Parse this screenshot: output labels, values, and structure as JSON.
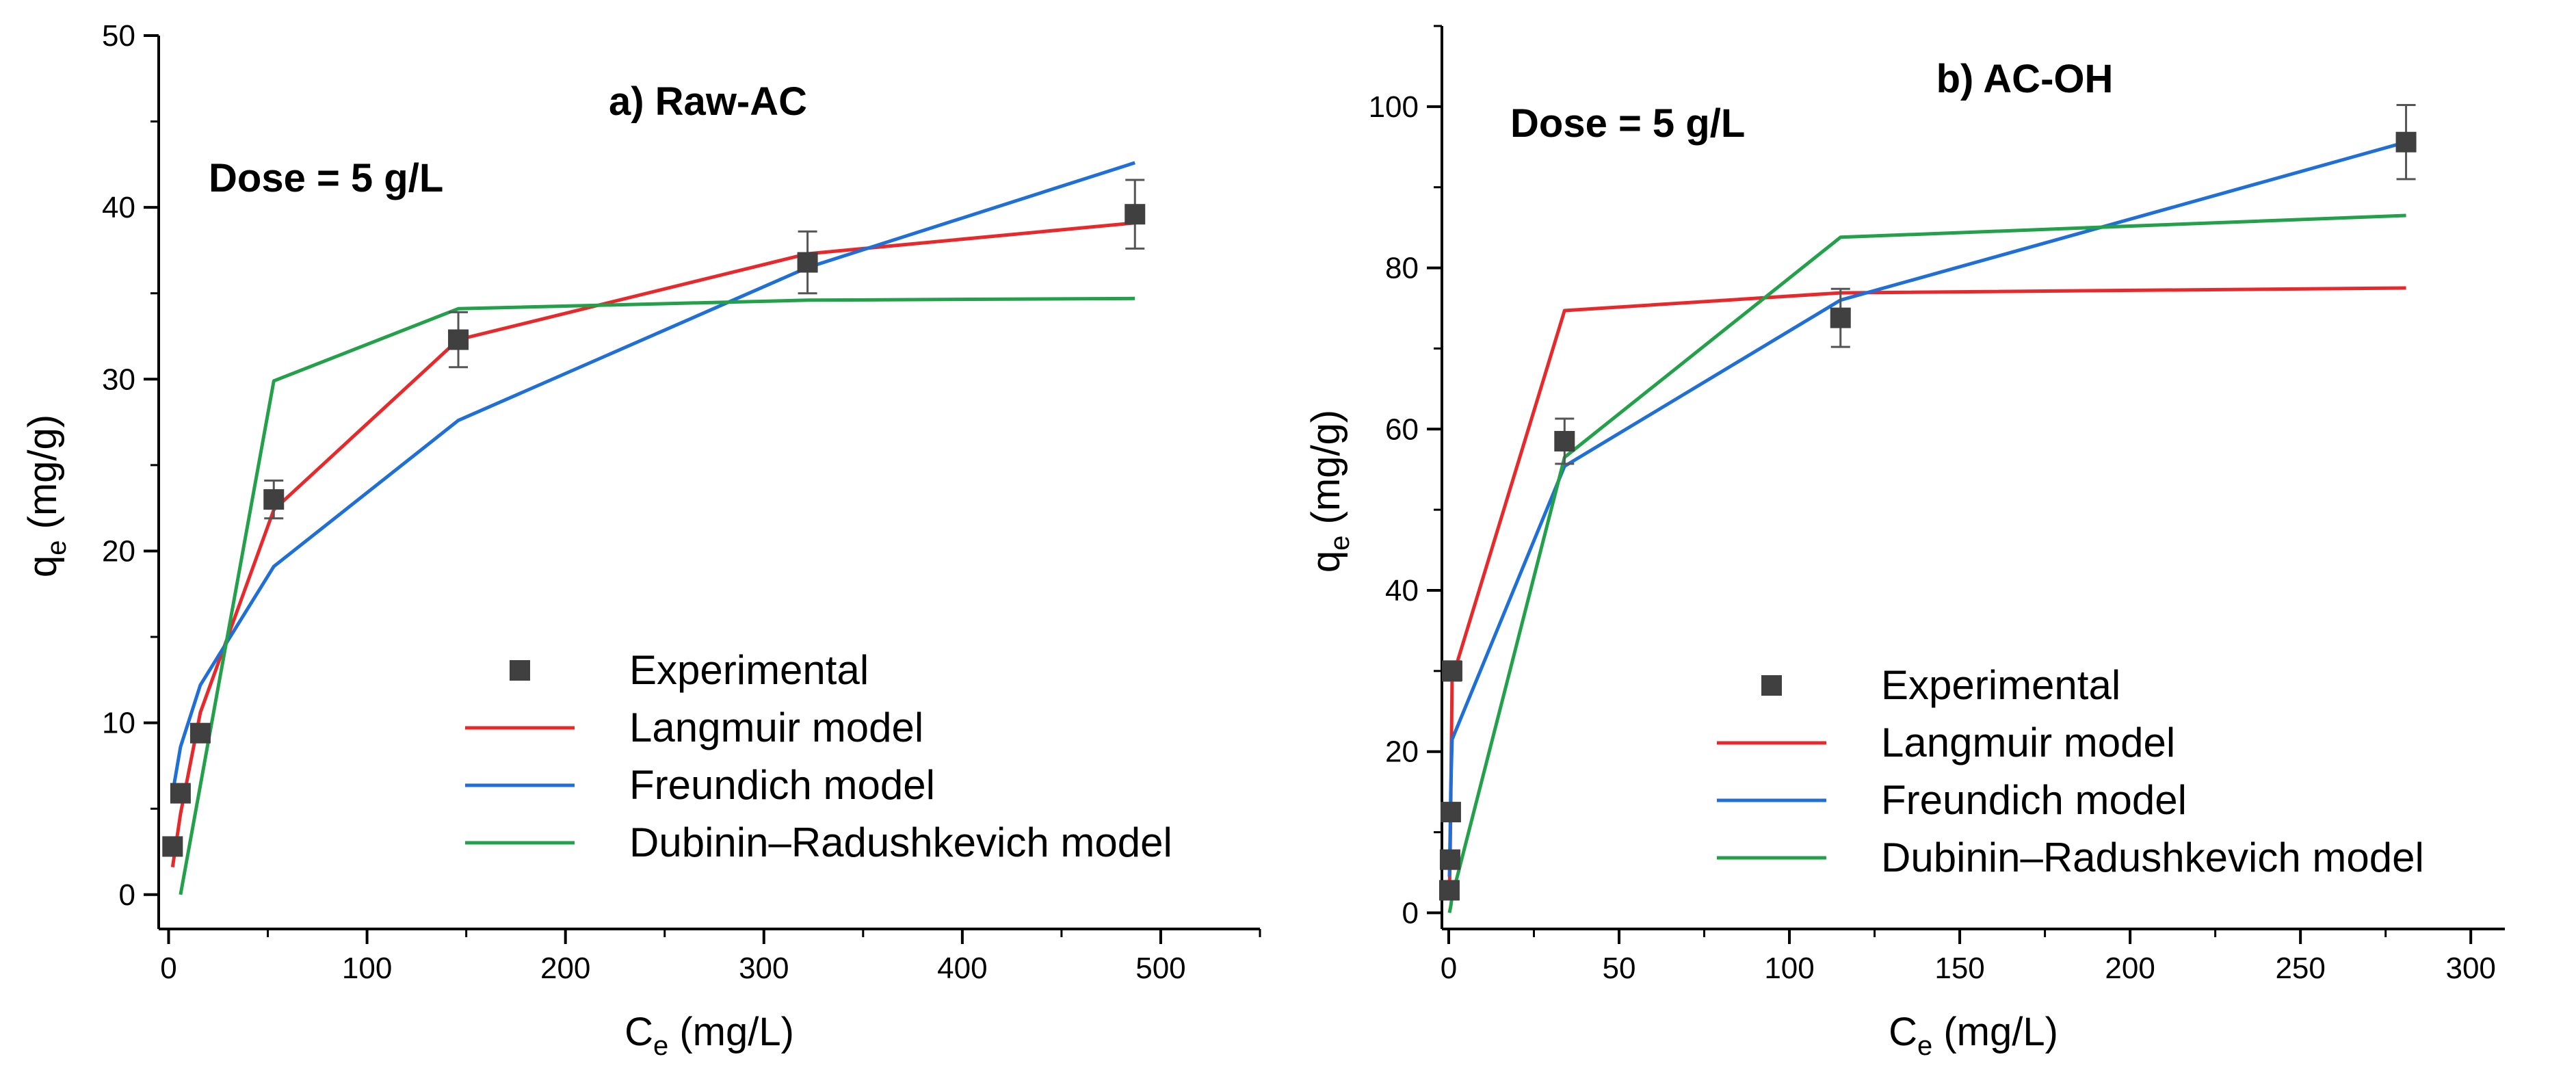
{
  "colors": {
    "experimental": "#404040",
    "langmuir": "#e8292b",
    "freundlich": "#1f6fd6",
    "dubinin": "#22a04a",
    "axis": "#000000"
  },
  "chart_data": [
    {
      "type": "line",
      "panel": "a",
      "title": "a) Raw-AC",
      "annotation": "Dose = 5 g/L",
      "xlabel": {
        "main": "C",
        "sub": "e",
        "unit": " (mg/L)"
      },
      "ylabel": {
        "main": "q",
        "sub": "e",
        "unit": " (mg/g)"
      },
      "xlim": [
        -5,
        550
      ],
      "ylim": [
        -2,
        50
      ],
      "xticks": [
        0,
        100,
        200,
        300,
        400,
        500
      ],
      "xtick_labels": [
        "0",
        "100",
        "200",
        "300",
        "400",
        "500"
      ],
      "yticks": [
        0,
        10,
        20,
        30,
        40,
        50
      ],
      "ytick_labels": [
        "0",
        "10",
        "20",
        "30",
        "40",
        "50"
      ],
      "legend_position": "bottom-right",
      "series": [
        {
          "name": "Experimental",
          "kind": "scatter",
          "x": [
            2,
            6,
            16,
            53,
            146,
            322,
            487
          ],
          "y": [
            2.8,
            5.9,
            9.4,
            23.0,
            32.3,
            36.8,
            39.6
          ],
          "err": [
            0.3,
            0.4,
            0.5,
            1.1,
            1.6,
            1.8,
            2.0
          ]
        },
        {
          "name": "Langmuir model",
          "kind": "line",
          "x": [
            2,
            6,
            16,
            53,
            146,
            322,
            487
          ],
          "y": [
            1.6,
            4.7,
            10.6,
            22.4,
            32.3,
            37.3,
            39.1
          ]
        },
        {
          "name": "Freundich model",
          "kind": "line",
          "x": [
            2,
            6,
            16,
            53,
            146,
            322,
            487
          ],
          "y": [
            5.9,
            8.6,
            12.2,
            19.1,
            27.6,
            36.5,
            42.6
          ]
        },
        {
          "name": "Dubinin–Radushkevich model",
          "kind": "line",
          "x": [
            6,
            53,
            146,
            322,
            487
          ],
          "y": [
            0.0,
            29.9,
            34.1,
            34.6,
            34.7
          ]
        }
      ]
    },
    {
      "type": "line",
      "panel": "b",
      "title": "b) AC-OH",
      "annotation": "Dose = 5 g/L",
      "xlabel": {
        "main": "C",
        "sub": "e",
        "unit": " (mg/L)"
      },
      "ylabel": {
        "main": "q",
        "sub": "e",
        "unit": " (mg/g)"
      },
      "xlim": [
        -2,
        310
      ],
      "ylim": [
        -2,
        110
      ],
      "xticks": [
        0,
        50,
        100,
        150,
        200,
        250,
        300
      ],
      "xtick_labels": [
        "0",
        "50",
        "100",
        "150",
        "200",
        "250",
        "300"
      ],
      "yticks": [
        0,
        20,
        40,
        60,
        80,
        100
      ],
      "ytick_labels": [
        "0",
        "20",
        "40",
        "60",
        "80",
        "100"
      ],
      "legend_position": "bottom-right",
      "series": [
        {
          "name": "Experimental",
          "kind": "scatter",
          "x": [
            0.2,
            0.4,
            0.6,
            1.0,
            34,
            115,
            281
          ],
          "y": [
            2.8,
            6.6,
            12.5,
            30.0,
            58.5,
            73.8,
            95.6
          ],
          "err": [
            0.3,
            0.4,
            0.6,
            1.2,
            2.8,
            3.6,
            4.6
          ]
        },
        {
          "name": "Langmuir model",
          "kind": "line",
          "x": [
            0.2,
            0.4,
            0.6,
            1.0,
            34,
            115,
            281
          ],
          "y": [
            2.8,
            7.0,
            13.0,
            29.0,
            74.7,
            76.9,
            77.5
          ]
        },
        {
          "name": "Freundich model",
          "kind": "line",
          "x": [
            0.2,
            0.4,
            0.6,
            1.0,
            34,
            115,
            281
          ],
          "y": [
            4.5,
            9.5,
            15.0,
            21.5,
            55.4,
            76.0,
            95.6
          ]
        },
        {
          "name": "Dubinin–Radushkevich model",
          "kind": "line",
          "x": [
            0.2,
            0.6,
            1.0,
            34,
            115,
            281
          ],
          "y": [
            0.0,
            0.8,
            2.0,
            56.5,
            83.8,
            86.5
          ]
        }
      ]
    }
  ]
}
